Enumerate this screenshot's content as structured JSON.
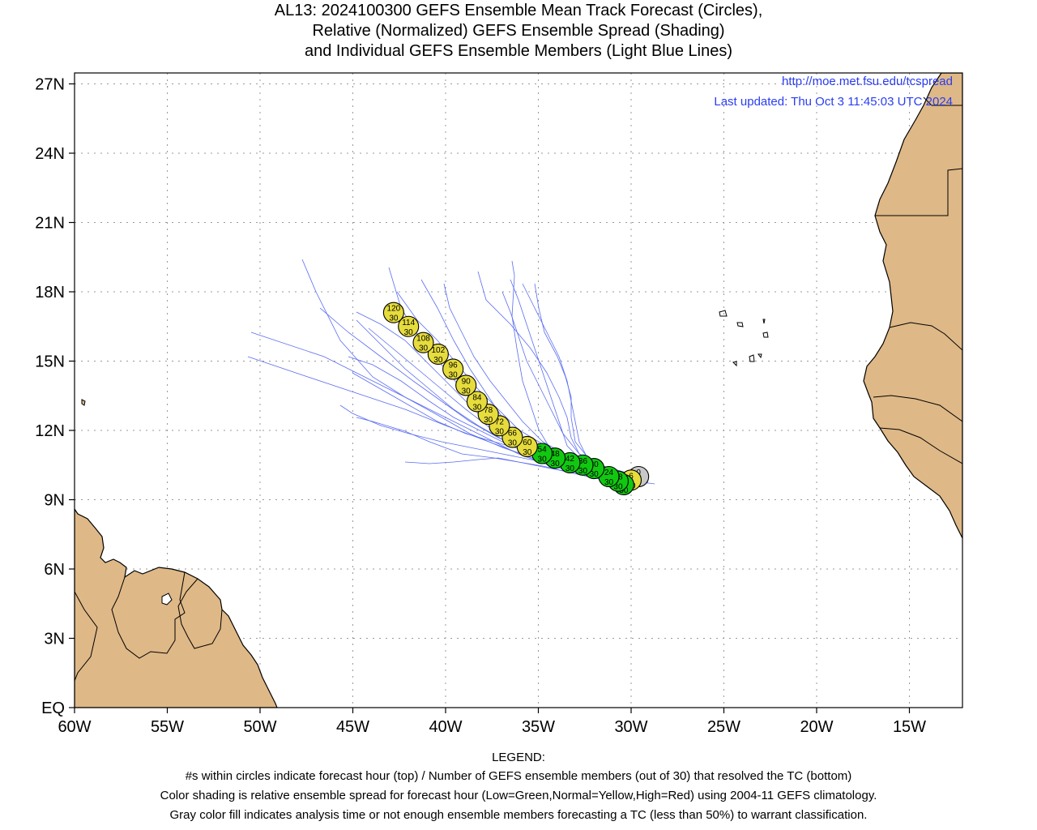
{
  "title": {
    "line1": "AL13: 2024100300 GEFS Ensemble Mean Track Forecast (Circles),",
    "line2": "Relative (Normalized) GEFS Ensemble Spread (Shading)",
    "line3": "and Individual GEFS Ensemble Members (Light Blue Lines)"
  },
  "header": {
    "url": "http://moe.met.fsu.edu/tcspread",
    "updated": "Last updated: Thu Oct 3 11:45:03 UTC 2024"
  },
  "axes": {
    "lon_labels": [
      "60W",
      "55W",
      "50W",
      "45W",
      "40W",
      "35W",
      "30W",
      "25W",
      "20W",
      "15W"
    ],
    "lat_labels": [
      "EQ",
      "3N",
      "6N",
      "9N",
      "12N",
      "15N",
      "18N",
      "21N",
      "24N",
      "27N"
    ]
  },
  "colors": {
    "land": "#deb887",
    "member_line": "#5a6cf2",
    "gray_fill": "#c8c8c8",
    "green_fill": "#11c811",
    "yellow_fill": "#e6dc3c",
    "link_text": "#2b3df0"
  },
  "forecast_points": [
    {
      "hour": "0",
      "members": "",
      "lon": -29.6,
      "lat": 10.0,
      "spread": "gray"
    },
    {
      "hour": "6",
      "members": "30",
      "lon": -30.0,
      "lat": 9.85,
      "spread": "yellow"
    },
    {
      "hour": "12",
      "members": "30",
      "lon": -30.4,
      "lat": 9.65,
      "spread": "green"
    },
    {
      "hour": "18",
      "members": "30",
      "lon": -30.7,
      "lat": 9.8,
      "spread": "green"
    },
    {
      "hour": "24",
      "members": "30",
      "lon": -31.2,
      "lat": 10.0,
      "spread": "green"
    },
    {
      "hour": "30",
      "members": "30",
      "lon": -32.0,
      "lat": 10.35,
      "spread": "green"
    },
    {
      "hour": "36",
      "members": "30",
      "lon": -32.6,
      "lat": 10.5,
      "spread": "green"
    },
    {
      "hour": "42",
      "members": "30",
      "lon": -33.3,
      "lat": 10.6,
      "spread": "green"
    },
    {
      "hour": "48",
      "members": "30",
      "lon": -34.1,
      "lat": 10.8,
      "spread": "green"
    },
    {
      "hour": "54",
      "members": "30",
      "lon": -34.8,
      "lat": 11.0,
      "spread": "green"
    },
    {
      "hour": "60",
      "members": "30",
      "lon": -35.6,
      "lat": 11.3,
      "spread": "yellow"
    },
    {
      "hour": "66",
      "members": "30",
      "lon": -36.4,
      "lat": 11.7,
      "spread": "yellow"
    },
    {
      "hour": "72",
      "members": "30",
      "lon": -37.1,
      "lat": 12.2,
      "spread": "yellow"
    },
    {
      "hour": "78",
      "members": "30",
      "lon": -37.7,
      "lat": 12.7,
      "spread": "yellow"
    },
    {
      "hour": "84",
      "members": "30",
      "lon": -38.3,
      "lat": 13.25,
      "spread": "yellow"
    },
    {
      "hour": "90",
      "members": "30",
      "lon": -38.9,
      "lat": 13.95,
      "spread": "yellow"
    },
    {
      "hour": "96",
      "members": "30",
      "lon": -39.6,
      "lat": 14.65,
      "spread": "yellow"
    },
    {
      "hour": "102",
      "members": "30",
      "lon": -40.4,
      "lat": 15.3,
      "spread": "yellow"
    },
    {
      "hour": "108",
      "members": "30",
      "lon": -41.2,
      "lat": 15.8,
      "spread": "yellow"
    },
    {
      "hour": "114",
      "members": "30",
      "lon": -42.0,
      "lat": 16.5,
      "spread": "yellow"
    },
    {
      "hour": "120",
      "members": "30",
      "lon": -42.8,
      "lat": 17.1,
      "spread": "yellow"
    }
  ],
  "legend": {
    "heading": "LEGEND:",
    "line1": "#s within circles indicate forecast hour (top) / Number of GEFS ensemble members (out of 30) that resolved the TC (bottom)",
    "line2": "Color shading is relative ensemble spread for forecast hour (Low=Green,Normal=Yellow,High=Red) using 2004-11 GEFS climatology.",
    "line3": "Gray color fill indicates analysis time or not enough ensemble members forecasting a TC (less than 50%) to warrant classification."
  }
}
